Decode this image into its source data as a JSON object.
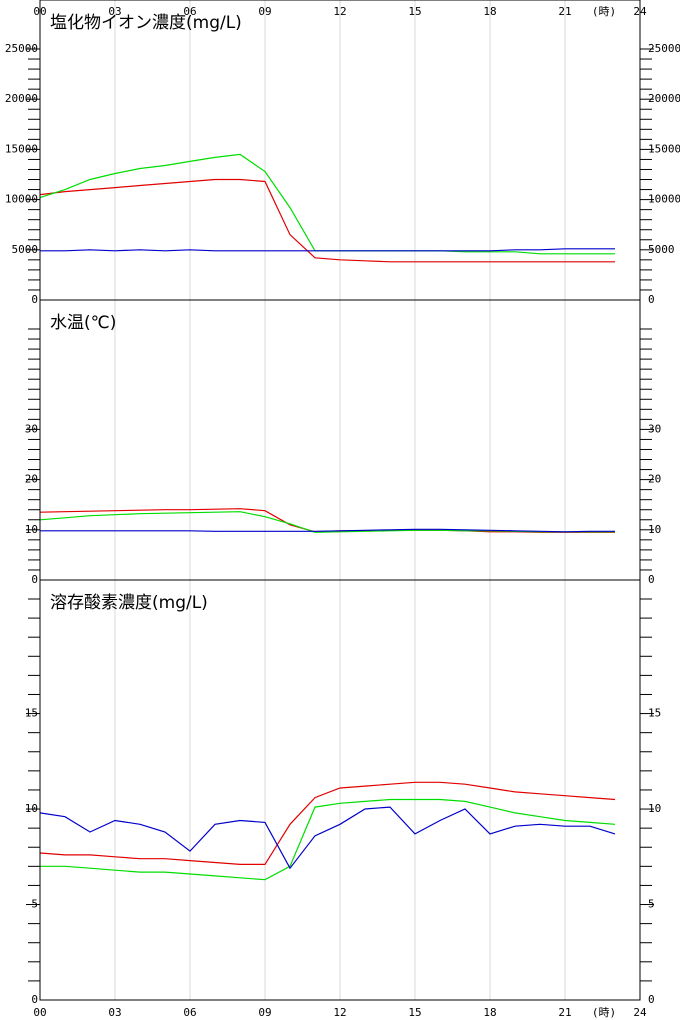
{
  "x_axis": {
    "top_labels": [
      "00",
      "03",
      "06",
      "09",
      "12",
      "15",
      "18",
      "21",
      "24"
    ],
    "bottom_labels": [
      "00",
      "03",
      "06",
      "09",
      "12",
      "15",
      "18",
      "21",
      "24"
    ],
    "unit_label": "(時)"
  },
  "colors": {
    "red": "#e00000",
    "green": "#00dd00",
    "blue": "#0000cc"
  },
  "chart_data": [
    {
      "type": "line",
      "title": "塩化物イオン濃度(mg/L)",
      "x": [
        0,
        1,
        2,
        3,
        4,
        5,
        6,
        7,
        8,
        9,
        10,
        11,
        12,
        13,
        14,
        15,
        16,
        17,
        18,
        19,
        20,
        21,
        22,
        23
      ],
      "ylim": [
        0,
        25000
      ],
      "yticks": [
        0,
        5000,
        10000,
        15000,
        20000,
        25000
      ],
      "ytick_labels": [
        "0",
        "5000",
        "10000",
        "15000",
        "20000",
        "25000"
      ],
      "minor_step": 1000,
      "series": [
        {
          "color": "red",
          "values": [
            10500,
            10800,
            11000,
            11200,
            11400,
            11600,
            11800,
            12000,
            12000,
            11800,
            6500,
            4200,
            4000,
            3900,
            3800,
            3800,
            3800,
            3800,
            3800,
            3800,
            3800,
            3800,
            3800,
            3800
          ]
        },
        {
          "color": "green",
          "values": [
            10200,
            11000,
            12000,
            12600,
            13100,
            13400,
            13800,
            14200,
            14500,
            12800,
            9200,
            4900,
            4900,
            4900,
            4900,
            4900,
            4900,
            4800,
            4800,
            4800,
            4600,
            4600,
            4600,
            4600
          ]
        },
        {
          "color": "blue",
          "values": [
            4900,
            4900,
            5000,
            4900,
            5000,
            4900,
            5000,
            4900,
            4900,
            4900,
            4900,
            4900,
            4900,
            4900,
            4900,
            4900,
            4900,
            4900,
            4900,
            5000,
            5000,
            5100,
            5100,
            5100
          ]
        }
      ]
    },
    {
      "type": "line",
      "title": "水温(℃)",
      "x": [
        0,
        1,
        2,
        3,
        4,
        5,
        6,
        7,
        8,
        9,
        10,
        11,
        12,
        13,
        14,
        15,
        16,
        17,
        18,
        19,
        20,
        21,
        22,
        23
      ],
      "ylim": [
        0,
        50
      ],
      "yticks": [
        0,
        10,
        20,
        30
      ],
      "ytick_labels": [
        "0",
        "10",
        "20",
        "30"
      ],
      "minor_step": 2,
      "series": [
        {
          "color": "red",
          "values": [
            13.5,
            13.6,
            13.7,
            13.8,
            13.9,
            14.0,
            14.0,
            14.1,
            14.2,
            13.8,
            11.0,
            9.6,
            9.8,
            9.8,
            9.9,
            9.9,
            9.9,
            9.8,
            9.6,
            9.6,
            9.5,
            9.5,
            9.5,
            9.5
          ]
        },
        {
          "color": "green",
          "values": [
            12.0,
            12.4,
            12.8,
            13.0,
            13.2,
            13.3,
            13.4,
            13.5,
            13.6,
            12.6,
            11.2,
            9.5,
            9.6,
            9.7,
            9.8,
            9.9,
            9.9,
            9.8,
            9.8,
            9.7,
            9.6,
            9.6,
            9.6,
            9.6
          ]
        },
        {
          "color": "blue",
          "values": [
            9.8,
            9.8,
            9.8,
            9.8,
            9.8,
            9.8,
            9.8,
            9.7,
            9.7,
            9.7,
            9.7,
            9.7,
            9.8,
            9.9,
            10.0,
            10.1,
            10.1,
            10.0,
            9.9,
            9.8,
            9.7,
            9.6,
            9.7,
            9.7
          ]
        }
      ]
    },
    {
      "type": "line",
      "title": "溶存酸素濃度(mg/L)",
      "x": [
        0,
        1,
        2,
        3,
        4,
        5,
        6,
        7,
        8,
        9,
        10,
        11,
        12,
        13,
        14,
        15,
        16,
        17,
        18,
        19,
        20,
        21,
        22,
        23
      ],
      "ylim": [
        0,
        21
      ],
      "yticks": [
        0,
        5,
        10,
        15
      ],
      "ytick_labels": [
        "0",
        "5",
        "10",
        "15"
      ],
      "minor_step": 1,
      "series": [
        {
          "color": "red",
          "values": [
            7.7,
            7.6,
            7.6,
            7.5,
            7.4,
            7.4,
            7.3,
            7.2,
            7.1,
            7.1,
            9.2,
            10.6,
            11.1,
            11.2,
            11.3,
            11.4,
            11.4,
            11.3,
            11.1,
            10.9,
            10.8,
            10.7,
            10.6,
            10.5
          ]
        },
        {
          "color": "green",
          "values": [
            7.0,
            7.0,
            6.9,
            6.8,
            6.7,
            6.7,
            6.6,
            6.5,
            6.4,
            6.3,
            7.0,
            10.1,
            10.3,
            10.4,
            10.5,
            10.5,
            10.5,
            10.4,
            10.1,
            9.8,
            9.6,
            9.4,
            9.3,
            9.2
          ]
        },
        {
          "color": "blue",
          "values": [
            9.8,
            9.6,
            8.8,
            9.4,
            9.2,
            8.8,
            7.8,
            9.2,
            9.4,
            9.3,
            6.9,
            8.6,
            9.2,
            10.0,
            10.1,
            8.7,
            9.4,
            10.0,
            8.7,
            9.1,
            9.2,
            9.1,
            9.1,
            8.7
          ]
        }
      ]
    }
  ]
}
